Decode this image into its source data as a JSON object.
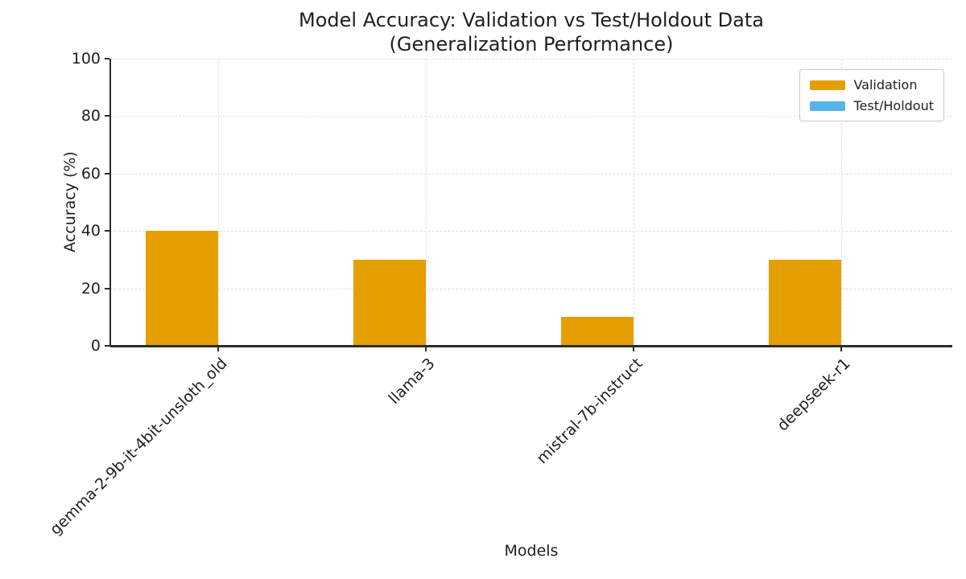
{
  "chart_data": {
    "type": "bar",
    "title": "Model Accuracy: Validation vs Test/Holdout Data",
    "subtitle": "(Generalization Performance)",
    "xlabel": "Models",
    "ylabel": "Accuracy (%)",
    "categories": [
      "gemma-2-9b-it-4bit-unsloth_old",
      "llama-3",
      "mistral-7b-instruct",
      "deepseek-r1"
    ],
    "series": [
      {
        "name": "Validation",
        "color": "#E69F00",
        "values": [
          40,
          30,
          10,
          30
        ]
      },
      {
        "name": "Test/Holdout",
        "color": "#56B4E9",
        "values": [
          0,
          0,
          0,
          0
        ]
      }
    ],
    "ylim": [
      0,
      100
    ],
    "yticks": [
      0,
      20,
      40,
      60,
      80,
      100
    ],
    "grid": "dashed-both-axes",
    "legend_position": "upper-right"
  },
  "colors": {
    "validation": "#E69F00",
    "test_holdout": "#56B4E9",
    "axis": "#2b2b2b",
    "grid": "#e0e0e0",
    "text": "#1f1f1f",
    "background": "#ffffff",
    "legend_border": "#cccccc"
  }
}
